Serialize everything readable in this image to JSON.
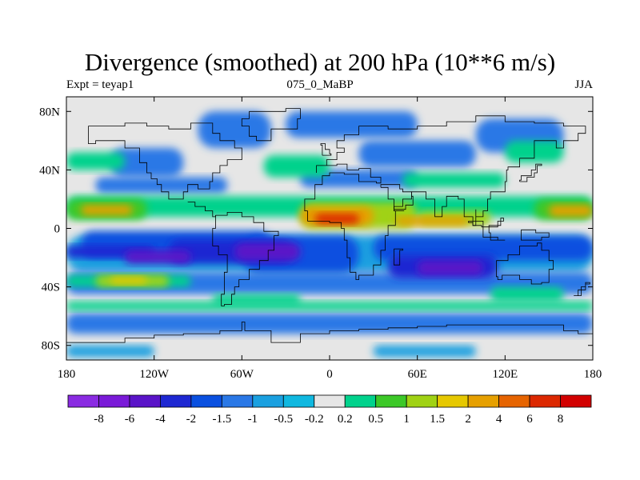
{
  "header": {
    "title": "Divergence (smoothed) at 200 hPa (10**6 m/s)",
    "left_label": "Expt = teyap1",
    "center_label": "075_0_MaBP",
    "right_label": "JJA"
  },
  "chart_data": {
    "type": "heatmap",
    "title": "Divergence (smoothed) at 200 hPa (10**6 m/s)",
    "experiment": "Expt = teyap1",
    "period": "075_0_MaBP",
    "season": "JJA",
    "xlabel": "",
    "ylabel": "",
    "xlim": [
      -180,
      180
    ],
    "ylim": [
      -90,
      90
    ],
    "x_ticks": [
      {
        "value": -180,
        "label": "180"
      },
      {
        "value": -120,
        "label": "120W"
      },
      {
        "value": -60,
        "label": "60W"
      },
      {
        "value": 0,
        "label": "0"
      },
      {
        "value": 60,
        "label": "60E"
      },
      {
        "value": 120,
        "label": "120E"
      },
      {
        "value": 180,
        "label": "180"
      }
    ],
    "y_ticks": [
      {
        "value": 80,
        "label": "80N"
      },
      {
        "value": 40,
        "label": "40N"
      },
      {
        "value": 0,
        "label": "0"
      },
      {
        "value": -40,
        "label": "40S"
      },
      {
        "value": -80,
        "label": "80S"
      }
    ],
    "colorbar": {
      "levels": [
        "-8",
        "-6",
        "-4",
        "-2",
        "-1.5",
        "-1",
        "-0.5",
        "-0.2",
        "0.2",
        "0.5",
        "1",
        "1.5",
        "2",
        "4",
        "6",
        "8"
      ],
      "colors": [
        "#8a2be2",
        "#7a1ad8",
        "#5a14c8",
        "#1e28d2",
        "#0a50e0",
        "#2a78e6",
        "#1aa0e0",
        "#10b8e0",
        "#e6e6e6",
        "#00d28c",
        "#3cc828",
        "#a0d214",
        "#e6c800",
        "#e6a000",
        "#e66400",
        "#dc2800",
        "#d20000"
      ]
    },
    "features": [
      {
        "name": "equatorial-convergence-belt",
        "lon_range": [
          -180,
          180
        ],
        "lat_range": [
          -25,
          -5
        ],
        "value_range": [
          -4,
          -1.5
        ]
      },
      {
        "name": "african-asian-divergence",
        "lon_range": [
          -25,
          100
        ],
        "lat_range": [
          0,
          20
        ],
        "value_range": [
          2,
          6
        ]
      },
      {
        "name": "central-pacific-divergence",
        "lon_range": [
          -180,
          -125
        ],
        "lat_range": [
          5,
          18
        ],
        "value_range": [
          1.5,
          2
        ]
      },
      {
        "name": "west-pacific-divergence",
        "lon_range": [
          140,
          180
        ],
        "lat_range": [
          5,
          20
        ],
        "value_range": [
          1.5,
          2
        ]
      },
      {
        "name": "south-indian-convergence",
        "lon_range": [
          60,
          115
        ],
        "lat_range": [
          -45,
          -25
        ],
        "value_range": [
          -4,
          -2
        ]
      },
      {
        "name": "southern-midlatitude-divergence",
        "lon_range": [
          -180,
          -110
        ],
        "lat_range": [
          -40,
          -25
        ],
        "value_range": [
          1,
          2
        ]
      },
      {
        "name": "north-subtropical-convergence",
        "lon_range": [
          -140,
          170
        ],
        "lat_range": [
          25,
          55
        ],
        "value_range": [
          -1.5,
          -0.5
        ]
      }
    ]
  }
}
